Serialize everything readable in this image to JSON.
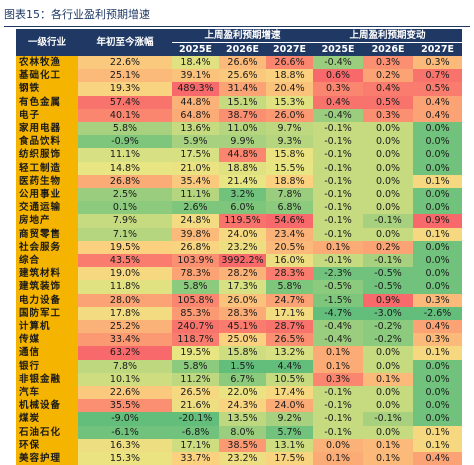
{
  "title": "图表15：各行业盈利预期增速",
  "headers": {
    "industry": "一级行业",
    "ytd": "年初至今涨幅",
    "group1": "上周盈利预期增速",
    "group2": "上周盈利预期变动",
    "years": [
      "2025E",
      "2026E",
      "2027E"
    ]
  },
  "rows": [
    {
      "name": "农林牧渔",
      "ytd": "22.6%",
      "g": [
        "18.4%",
        "26.6%",
        "26.6%"
      ],
      "c": [
        "-0.4%",
        "0.3%",
        "0.3%"
      ]
    },
    {
      "name": "基础化工",
      "ytd": "25.1%",
      "g": [
        "39.1%",
        "25.6%",
        "18.8%"
      ],
      "c": [
        "0.6%",
        "0.2%",
        "0.7%"
      ]
    },
    {
      "name": "钢铁",
      "ytd": "19.3%",
      "g": [
        "489.3%",
        "31.4%",
        "20.4%"
      ],
      "c": [
        "0.3%",
        "0.4%",
        "0.5%"
      ]
    },
    {
      "name": "有色金属",
      "ytd": "57.4%",
      "g": [
        "44.8%",
        "15.1%",
        "15.3%"
      ],
      "c": [
        "0.4%",
        "0.5%",
        "0.4%"
      ]
    },
    {
      "name": "电子",
      "ytd": "40.1%",
      "g": [
        "64.8%",
        "38.7%",
        "26.0%"
      ],
      "c": [
        "-0.4%",
        "0.3%",
        "0.4%"
      ]
    },
    {
      "name": "家用电器",
      "ytd": "5.8%",
      "g": [
        "13.6%",
        "11.0%",
        "9.7%"
      ],
      "c": [
        "-0.1%",
        "0.0%",
        "0.0%"
      ]
    },
    {
      "name": "食品饮料",
      "ytd": "-0.9%",
      "g": [
        "5.9%",
        "9.9%",
        "9.3%"
      ],
      "c": [
        "-0.1%",
        "0.0%",
        "0.0%"
      ]
    },
    {
      "name": "纺织服饰",
      "ytd": "11.1%",
      "g": [
        "17.5%",
        "44.8%",
        "15.8%"
      ],
      "c": [
        "-0.1%",
        "0.0%",
        "0.0%"
      ]
    },
    {
      "name": "轻工制造",
      "ytd": "14.8%",
      "g": [
        "21.0%",
        "18.8%",
        "15.5%"
      ],
      "c": [
        "-0.1%",
        "0.0%",
        "0.0%"
      ]
    },
    {
      "name": "医药生物",
      "ytd": "26.8%",
      "g": [
        "35.4%",
        "21.4%",
        "18.8%"
      ],
      "c": [
        "-0.1%",
        "0.0%",
        "0.1%"
      ]
    },
    {
      "name": "公用事业",
      "ytd": "2.5%",
      "g": [
        "11.1%",
        "3.2%",
        "7.8%"
      ],
      "c": [
        "-0.1%",
        "0.0%",
        "0.0%"
      ]
    },
    {
      "name": "交通运输",
      "ytd": "0.1%",
      "g": [
        "2.6%",
        "6.0%",
        "6.8%"
      ],
      "c": [
        "-0.1%",
        "0.0%",
        "0.0%"
      ]
    },
    {
      "name": "房地产",
      "ytd": "7.9%",
      "g": [
        "24.8%",
        "119.5%",
        "54.6%"
      ],
      "c": [
        "-0.1%",
        "-0.1%",
        "0.9%"
      ]
    },
    {
      "name": "商贸零售",
      "ytd": "7.1%",
      "g": [
        "39.8%",
        "24.0%",
        "23.4%"
      ],
      "c": [
        "-0.1%",
        "0.0%",
        "0.1%"
      ]
    },
    {
      "name": "社会服务",
      "ytd": "19.5%",
      "g": [
        "26.8%",
        "23.2%",
        "20.5%"
      ],
      "c": [
        "0.1%",
        "0.2%",
        "0.0%"
      ]
    },
    {
      "name": "综合",
      "ytd": "43.5%",
      "g": [
        "103.9%",
        "3992.2%",
        "16.0%"
      ],
      "c": [
        "-0.1%",
        "-0.1%",
        "0.0%"
      ]
    },
    {
      "name": "建筑材料",
      "ytd": "19.0%",
      "g": [
        "78.3%",
        "28.2%",
        "28.3%"
      ],
      "c": [
        "-2.3%",
        "-0.5%",
        "0.0%"
      ]
    },
    {
      "name": "建筑装饰",
      "ytd": "11.8%",
      "g": [
        "5.8%",
        "17.3%",
        "5.8%"
      ],
      "c": [
        "-0.5%",
        "-0.5%",
        "0.0%"
      ]
    },
    {
      "name": "电力设备",
      "ytd": "28.0%",
      "g": [
        "105.8%",
        "26.0%",
        "24.7%"
      ],
      "c": [
        "-1.5%",
        "0.9%",
        "0.3%"
      ]
    },
    {
      "name": "国防军工",
      "ytd": "17.8%",
      "g": [
        "85.3%",
        "28.3%",
        "17.1%"
      ],
      "c": [
        "-4.7%",
        "-3.0%",
        "-2.6%"
      ]
    },
    {
      "name": "计算机",
      "ytd": "25.2%",
      "g": [
        "240.7%",
        "45.1%",
        "28.7%"
      ],
      "c": [
        "-0.4%",
        "-0.2%",
        "0.4%"
      ]
    },
    {
      "name": "传媒",
      "ytd": "33.4%",
      "g": [
        "118.7%",
        "25.0%",
        "26.5%"
      ],
      "c": [
        "-0.4%",
        "-0.2%",
        "0.3%"
      ]
    },
    {
      "name": "通信",
      "ytd": "63.2%",
      "g": [
        "19.5%",
        "15.8%",
        "13.2%"
      ],
      "c": [
        "0.1%",
        "0.0%",
        "0.1%"
      ]
    },
    {
      "name": "银行",
      "ytd": "7.8%",
      "g": [
        "5.8%",
        "1.5%",
        "4.4%"
      ],
      "c": [
        "0.1%",
        "0.0%",
        "0.0%"
      ]
    },
    {
      "name": "非银金融",
      "ytd": "10.1%",
      "g": [
        "11.2%",
        "6.7%",
        "10.5%"
      ],
      "c": [
        "0.3%",
        "0.1%",
        "0.0%"
      ]
    },
    {
      "name": "汽车",
      "ytd": "22.6%",
      "g": [
        "26.5%",
        "22.0%",
        "17.4%"
      ],
      "c": [
        "-0.1%",
        "0.0%",
        "0.0%"
      ]
    },
    {
      "name": "机械设备",
      "ytd": "35.5%",
      "g": [
        "21.6%",
        "24.3%",
        "24.0%"
      ],
      "c": [
        "-0.1%",
        "0.0%",
        "0.0%"
      ]
    },
    {
      "name": "煤炭",
      "ytd": "-9.0%",
      "g": [
        "-20.1%",
        "13.5%",
        "9.2%"
      ],
      "c": [
        "-0.1%",
        "-0.1%",
        "0.0%"
      ]
    },
    {
      "name": "石油石化",
      "ytd": "-6.1%",
      "g": [
        "-6.8%",
        "8.0%",
        "5.7%"
      ],
      "c": [
        "-0.1%",
        "0.0%",
        "0.1%"
      ]
    },
    {
      "name": "环保",
      "ytd": "16.3%",
      "g": [
        "17.1%",
        "38.5%",
        "13.1%"
      ],
      "c": [
        "0.0%",
        "0.1%",
        "0.1%"
      ]
    },
    {
      "name": "美容护理",
      "ytd": "15.3%",
      "g": [
        "33.7%",
        "23.2%",
        "17.5%"
      ],
      "c": [
        "0.1%",
        "0.1%",
        "0.4%"
      ]
    }
  ],
  "colors": {
    "header_bg": "#1f3864",
    "industry_bg": "#f5b400",
    "scale": [
      "#63be7b",
      "#b5d57f",
      "#e8e583",
      "#fbd17f",
      "#fba374",
      "#f8696b"
    ]
  }
}
